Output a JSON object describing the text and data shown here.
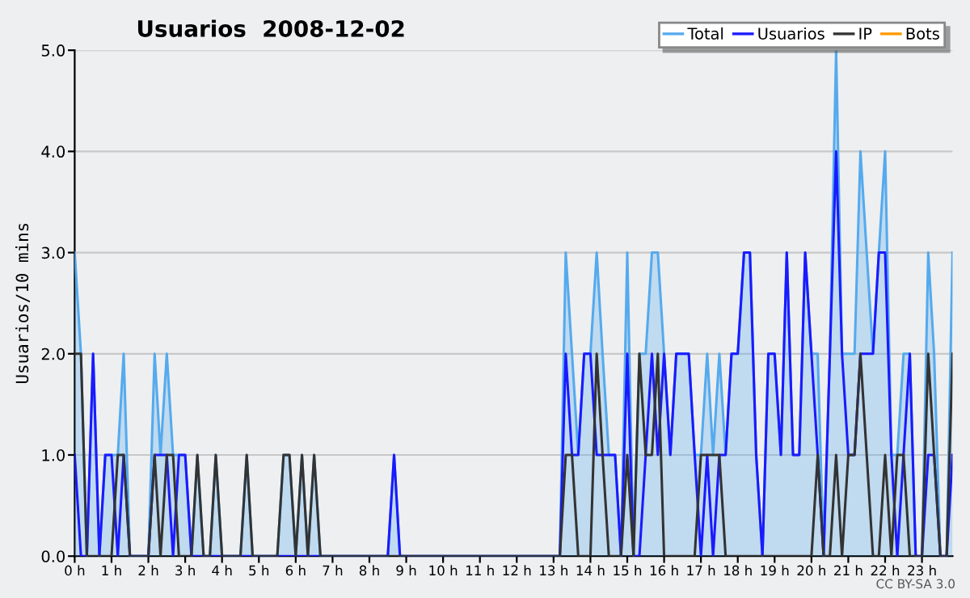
{
  "chart_data": {
    "type": "line",
    "title": "Usuarios  2008-12-02",
    "ylabel": "Usuarios/10 mins",
    "annotations": [
      "CC BY-SA 3.0"
    ],
    "x": [
      0,
      0.17,
      0.33,
      0.5,
      0.67,
      0.83,
      1,
      1.17,
      1.33,
      1.5,
      1.67,
      1.83,
      2,
      2.17,
      2.33,
      2.5,
      2.67,
      2.83,
      3,
      3.17,
      3.33,
      3.5,
      3.67,
      3.83,
      4,
      4.17,
      4.33,
      4.5,
      4.67,
      4.83,
      5,
      5.17,
      5.33,
      5.5,
      5.67,
      5.83,
      6,
      6.17,
      6.33,
      6.5,
      6.67,
      6.83,
      7,
      7.17,
      7.33,
      7.5,
      7.67,
      7.83,
      8,
      8.17,
      8.33,
      8.5,
      8.67,
      8.83,
      9,
      9.17,
      9.33,
      9.5,
      9.67,
      9.83,
      10,
      10.17,
      10.33,
      10.5,
      10.67,
      10.83,
      11,
      11.17,
      11.33,
      11.5,
      11.67,
      11.83,
      12,
      12.17,
      12.33,
      12.5,
      12.67,
      12.83,
      13,
      13.17,
      13.33,
      13.5,
      13.67,
      13.83,
      14,
      14.17,
      14.33,
      14.5,
      14.67,
      14.83,
      15,
      15.17,
      15.33,
      15.5,
      15.67,
      15.83,
      16,
      16.17,
      16.33,
      16.5,
      16.67,
      16.83,
      17,
      17.17,
      17.33,
      17.5,
      17.67,
      17.83,
      18,
      18.17,
      18.33,
      18.5,
      18.67,
      18.83,
      19,
      19.17,
      19.33,
      19.5,
      19.67,
      19.83,
      20,
      20.17,
      20.33,
      20.5,
      20.67,
      20.83,
      21,
      21.17,
      21.33,
      21.5,
      21.67,
      21.83,
      22,
      22.17,
      22.33,
      22.5,
      22.67,
      22.83,
      23,
      23.17,
      23.33,
      23.5,
      23.67,
      23.83
    ],
    "series": [
      {
        "name": "Bots",
        "color": "#ff9900",
        "values": [
          null,
          null,
          null,
          null,
          null,
          null,
          null,
          null,
          null,
          null,
          null,
          null,
          null,
          null,
          null,
          null,
          null,
          null,
          null,
          null,
          null,
          null,
          null,
          null,
          null,
          null,
          null,
          null,
          null,
          null,
          null,
          null,
          null,
          null,
          null,
          null,
          null,
          null,
          null,
          null,
          null,
          null,
          null,
          null,
          null,
          null,
          null,
          null,
          null,
          null,
          null,
          null,
          null,
          null,
          null,
          null,
          null,
          null,
          null,
          null,
          null,
          null,
          null,
          null,
          null,
          null,
          null,
          null,
          null,
          null,
          null,
          null,
          null,
          null,
          null,
          null,
          null,
          null,
          null,
          null,
          null,
          null,
          null,
          null,
          null,
          null,
          null,
          null,
          null,
          null,
          null,
          null,
          null,
          null,
          null,
          null,
          null,
          null,
          null,
          null,
          null,
          null,
          null,
          null,
          null,
          null,
          null,
          null,
          null,
          null,
          null,
          null,
          null,
          null,
          null,
          null,
          null,
          null,
          null,
          null,
          null,
          null,
          null,
          null,
          null,
          null,
          null,
          null,
          null,
          null,
          null,
          null,
          null,
          null,
          null,
          null,
          null,
          null,
          null,
          null,
          null,
          null,
          null,
          null
        ]
      },
      {
        "name": "Total",
        "type": "area",
        "color": "#55aaee",
        "values": [
          3,
          2,
          0,
          2,
          0,
          1,
          1,
          1,
          2,
          0,
          0,
          0,
          0,
          2,
          1,
          2,
          1,
          1,
          1,
          0,
          1,
          0,
          0,
          1,
          0,
          0,
          0,
          0,
          1,
          0,
          0,
          0,
          0,
          0,
          1,
          1,
          0,
          1,
          0,
          1,
          0,
          0,
          0,
          0,
          0,
          0,
          0,
          0,
          0,
          0,
          0,
          0,
          1,
          0,
          0,
          0,
          0,
          0,
          0,
          0,
          0,
          0,
          0,
          0,
          0,
          0,
          0,
          0,
          0,
          0,
          0,
          0,
          0,
          0,
          0,
          0,
          0,
          0,
          0,
          0,
          3,
          2,
          1,
          2,
          2,
          3,
          2,
          1,
          1,
          0,
          3,
          0,
          2,
          2,
          3,
          3,
          2,
          1,
          2,
          2,
          2,
          1,
          1,
          2,
          1,
          2,
          1,
          2,
          2,
          3,
          3,
          1,
          0,
          2,
          2,
          1,
          3,
          1,
          1,
          3,
          2,
          2,
          0,
          2,
          5,
          2,
          2,
          2,
          4,
          3,
          2,
          3,
          4,
          1,
          1,
          2,
          2,
          0,
          0,
          3,
          2,
          0,
          0,
          3
        ]
      },
      {
        "name": "Usuarios",
        "color": "#1a1aff",
        "values": [
          1,
          0,
          0,
          2,
          0,
          1,
          1,
          0,
          1,
          0,
          0,
          0,
          0,
          1,
          1,
          1,
          0,
          1,
          1,
          0,
          0,
          0,
          0,
          0,
          0,
          0,
          0,
          0,
          0,
          0,
          0,
          0,
          0,
          0,
          0,
          0,
          0,
          0,
          0,
          0,
          0,
          0,
          0,
          0,
          0,
          0,
          0,
          0,
          0,
          0,
          0,
          0,
          1,
          0,
          0,
          0,
          0,
          0,
          0,
          0,
          0,
          0,
          0,
          0,
          0,
          0,
          0,
          0,
          0,
          0,
          0,
          0,
          0,
          0,
          0,
          0,
          0,
          0,
          0,
          0,
          2,
          1,
          1,
          2,
          2,
          1,
          1,
          1,
          1,
          0,
          2,
          0,
          0,
          1,
          2,
          1,
          2,
          1,
          2,
          2,
          2,
          1,
          0,
          1,
          0,
          1,
          1,
          2,
          2,
          3,
          3,
          1,
          0,
          2,
          2,
          1,
          3,
          1,
          1,
          3,
          2,
          1,
          0,
          2,
          4,
          2,
          1,
          1,
          2,
          2,
          2,
          3,
          3,
          1,
          0,
          1,
          2,
          0,
          0,
          1,
          1,
          0,
          0,
          1
        ]
      },
      {
        "name": "IP",
        "color": "#333333",
        "values": [
          2,
          2,
          0,
          0,
          0,
          0,
          0,
          1,
          1,
          0,
          0,
          0,
          0,
          1,
          0,
          1,
          1,
          0,
          0,
          0,
          1,
          0,
          0,
          1,
          0,
          0,
          0,
          0,
          1,
          0,
          0,
          0,
          0,
          0,
          1,
          1,
          0,
          1,
          0,
          1,
          0,
          0,
          0,
          0,
          0,
          0,
          0,
          0,
          0,
          0,
          0,
          0,
          0,
          0,
          0,
          0,
          0,
          0,
          0,
          0,
          0,
          0,
          0,
          0,
          0,
          0,
          0,
          0,
          0,
          0,
          0,
          0,
          0,
          0,
          0,
          0,
          0,
          0,
          0,
          0,
          1,
          1,
          0,
          0,
          0,
          2,
          1,
          0,
          0,
          0,
          1,
          0,
          2,
          1,
          1,
          2,
          0,
          0,
          0,
          0,
          0,
          0,
          1,
          1,
          1,
          1,
          0,
          0,
          0,
          0,
          0,
          0,
          0,
          0,
          0,
          0,
          0,
          0,
          0,
          0,
          0,
          1,
          0,
          0,
          1,
          0,
          1,
          1,
          2,
          1,
          0,
          0,
          1,
          0,
          1,
          1,
          0,
          0,
          0,
          2,
          1,
          0,
          0,
          2
        ]
      }
    ],
    "xlim": [
      0,
      23.83
    ],
    "xticks": [
      {
        "value": 0,
        "label": "0 h"
      },
      {
        "value": 1,
        "label": "1 h"
      },
      {
        "value": 2,
        "label": "2 h"
      },
      {
        "value": 3,
        "label": "3 h"
      },
      {
        "value": 4,
        "label": "4 h"
      },
      {
        "value": 5,
        "label": "5 h"
      },
      {
        "value": 6,
        "label": "6 h"
      },
      {
        "value": 7,
        "label": "7 h"
      },
      {
        "value": 8,
        "label": "8 h"
      },
      {
        "value": 9,
        "label": "9 h"
      },
      {
        "value": 10,
        "label": "10 h"
      },
      {
        "value": 11,
        "label": "11 h"
      },
      {
        "value": 12,
        "label": "12 h"
      },
      {
        "value": 13,
        "label": "13 h"
      },
      {
        "value": 14,
        "label": "14 h"
      },
      {
        "value": 15,
        "label": "15 h"
      },
      {
        "value": 16,
        "label": "16 h"
      },
      {
        "value": 17,
        "label": "17 h"
      },
      {
        "value": 18,
        "label": "18 h"
      },
      {
        "value": 19,
        "label": "19 h"
      },
      {
        "value": 20,
        "label": "20 h"
      },
      {
        "value": 21,
        "label": "21 h"
      },
      {
        "value": 22,
        "label": "22 h"
      },
      {
        "value": 23,
        "label": "23 h"
      }
    ],
    "ylim": [
      0,
      5
    ],
    "yticks": [
      {
        "value": 0,
        "label": "0.0"
      },
      {
        "value": 1,
        "label": "1.0"
      },
      {
        "value": 2,
        "label": "2.0"
      },
      {
        "value": 3,
        "label": "3.0"
      },
      {
        "value": 4,
        "label": "4.0"
      },
      {
        "value": 5,
        "label": "5.0"
      }
    ],
    "grid": "y",
    "legend": "top right",
    "marker": "none",
    "line_style": "solid"
  }
}
